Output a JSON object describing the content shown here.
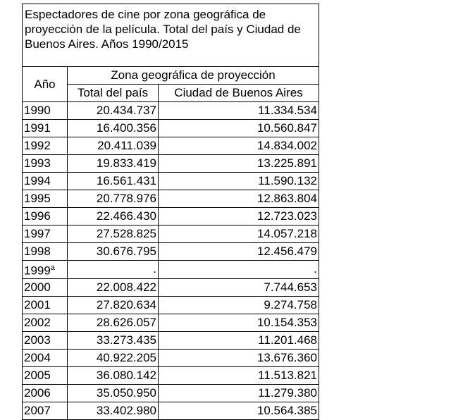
{
  "table": {
    "title": "Espectadores de cine por zona geográfica de proyección de la película. Total del país y Ciudad de Buenos Aires. Años 1990/2015",
    "header": {
      "year": "Año",
      "group": "Zona geográfica de proyección",
      "columns": [
        "Total del país",
        "Ciudad de Buenos Aires"
      ]
    },
    "rows": [
      {
        "year": "1990",
        "values": [
          "20.434.737",
          "11.334.534"
        ]
      },
      {
        "year": "1991",
        "values": [
          "16.400.356",
          "10.560.847"
        ]
      },
      {
        "year": "1992",
        "values": [
          "20.411.039",
          "14.834.002"
        ]
      },
      {
        "year": "1993",
        "values": [
          "19.833.419",
          "13.225.891"
        ]
      },
      {
        "year": "1994",
        "values": [
          "16.561.431",
          "11.590.132"
        ]
      },
      {
        "year": "1995",
        "values": [
          "20.778.976",
          "12.863.804"
        ]
      },
      {
        "year": "1996",
        "values": [
          "22.466.430",
          "12.723.023"
        ]
      },
      {
        "year": "1997",
        "values": [
          "27.528.825",
          "14.057.218"
        ]
      },
      {
        "year": "1998",
        "values": [
          "30.676.795",
          "12.456.479"
        ]
      },
      {
        "year": "1999",
        "note": "a",
        "values": [
          ".",
          "."
        ]
      },
      {
        "year": "2000",
        "values": [
          "22.008.422",
          "7.744.653"
        ]
      },
      {
        "year": "2001",
        "values": [
          "27.820.634",
          "9.274.758"
        ]
      },
      {
        "year": "2002",
        "values": [
          "28.626.057",
          "10.154.353"
        ]
      },
      {
        "year": "2003",
        "values": [
          "33.273.435",
          "11.201.468"
        ]
      },
      {
        "year": "2004",
        "values": [
          "40.922.205",
          "13.676.360"
        ]
      },
      {
        "year": "2005",
        "values": [
          "36.080.142",
          "11.513.821"
        ]
      },
      {
        "year": "2006",
        "values": [
          "35.050.950",
          "11.279.380"
        ]
      },
      {
        "year": "2007",
        "values": [
          "33.402.980",
          "10.564.385"
        ]
      }
    ]
  }
}
